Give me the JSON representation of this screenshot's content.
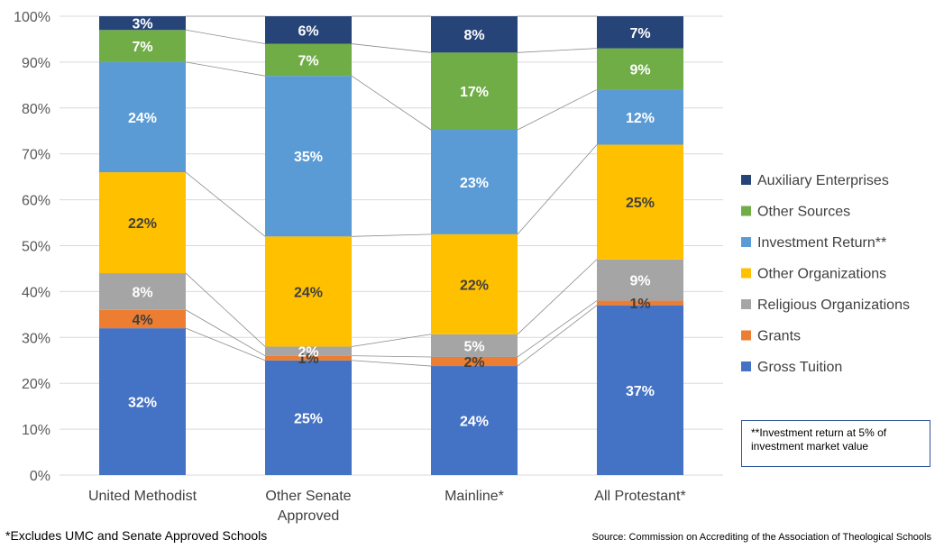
{
  "chart_data": {
    "type": "bar",
    "stacked": true,
    "percent_scale": true,
    "categories": [
      "United Methodist",
      "Other Senate Approved",
      "Mainline*",
      "All Protestant*"
    ],
    "category_lines": [
      [
        "United Methodist"
      ],
      [
        "Other Senate",
        "Approved"
      ],
      [
        "Mainline*"
      ],
      [
        "All Protestant*"
      ]
    ],
    "ylim": [
      0,
      100
    ],
    "yticks": [
      "0%",
      "10%",
      "20%",
      "30%",
      "40%",
      "50%",
      "60%",
      "70%",
      "80%",
      "90%",
      "100%"
    ],
    "grid": true,
    "legend_position": "right",
    "series": [
      {
        "name": "Gross Tuition",
        "color": "#4472c4",
        "label_color": "#ffffff",
        "values": [
          32,
          25,
          24,
          37
        ],
        "labels": [
          "32%",
          "25%",
          "24%",
          "37%"
        ]
      },
      {
        "name": "Grants",
        "color": "#ed7d31",
        "label_color": "#404040",
        "values": [
          4,
          1,
          2,
          1
        ],
        "labels": [
          "4%",
          "1%",
          "2%",
          "1%"
        ]
      },
      {
        "name": "Religious Organizations",
        "color": "#a5a5a5",
        "label_color": "#ffffff",
        "values": [
          8,
          2,
          5,
          9
        ],
        "labels": [
          "8%",
          "2%",
          "5%",
          "9%"
        ]
      },
      {
        "name": "Other Organizations",
        "color": "#ffc000",
        "label_color": "#404040",
        "values": [
          22,
          24,
          22,
          25
        ],
        "labels": [
          "22%",
          "24%",
          "22%",
          "25%"
        ]
      },
      {
        "name": "Investment Return**",
        "color": "#5b9bd5",
        "label_color": "#ffffff",
        "values": [
          24,
          35,
          23,
          12
        ],
        "labels": [
          "24%",
          "35%",
          "23%",
          "12%"
        ]
      },
      {
        "name": "Other Sources",
        "color": "#70ad47",
        "label_color": "#ffffff",
        "values": [
          7,
          7,
          17,
          9
        ],
        "labels": [
          "7%",
          "7%",
          "17%",
          "9%"
        ]
      },
      {
        "name": "Auxiliary Enterprises",
        "color": "#264478",
        "label_color": "#ffffff",
        "values": [
          3,
          6,
          8,
          7
        ],
        "labels": [
          "3%",
          "6%",
          "8%",
          "7%"
        ]
      }
    ],
    "legend_order": [
      "Auxiliary Enterprises",
      "Other Sources",
      "Investment Return**",
      "Other Organizations",
      "Religious Organizations",
      "Grants",
      "Gross Tuition"
    ]
  },
  "note": "**Investment return at 5% of investment market value",
  "footnote": "*Excludes UMC and Senate Approved Schools",
  "source": "Source: Commission on Accrediting of the Association of Theological Schools"
}
